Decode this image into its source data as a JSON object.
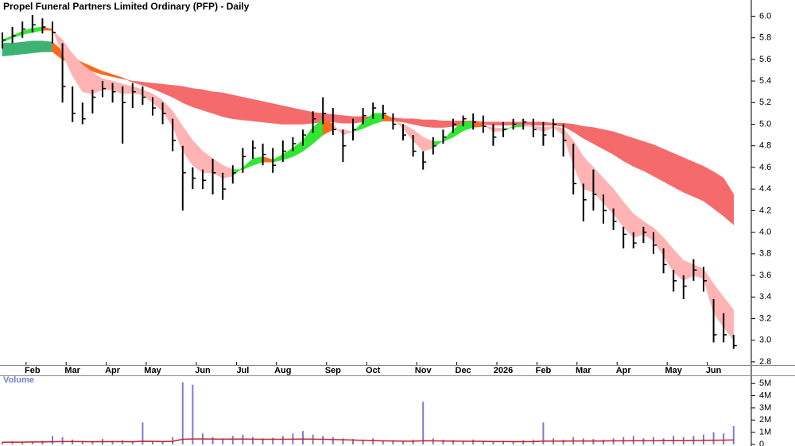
{
  "chart_data": {
    "type": "stock",
    "title": "Propel Funeral Partners Limited Ordinary (PFP) - Daily",
    "categories": [
      null,
      null,
      null,
      "Feb",
      null,
      null,
      null,
      "Mar",
      null,
      null,
      null,
      "Apr",
      null,
      null,
      null,
      "May",
      null,
      null,
      null,
      null,
      "Jun",
      null,
      null,
      null,
      "Jul",
      null,
      null,
      null,
      "Aug",
      null,
      null,
      null,
      null,
      "Sep",
      null,
      null,
      null,
      "Oct",
      null,
      null,
      null,
      null,
      "Nov",
      null,
      null,
      null,
      "Dec",
      null,
      null,
      null,
      "2026",
      null,
      null,
      null,
      "Feb",
      null,
      null,
      null,
      "Mar",
      null,
      null,
      null,
      "Apr",
      null,
      null,
      null,
      null,
      "May",
      null,
      null,
      null,
      "Jun",
      null,
      null
    ],
    "color": "#000000",
    "high": [
      5.85,
      5.9,
      5.95,
      6.01,
      5.98,
      5.95,
      5.75,
      5.35,
      5.2,
      5.32,
      5.4,
      5.38,
      5.35,
      5.38,
      5.35,
      5.25,
      5.2,
      5.05,
      4.8,
      4.6,
      4.58,
      4.68,
      4.55,
      4.62,
      4.78,
      4.85,
      4.82,
      4.78,
      4.85,
      4.88,
      4.95,
      5.12,
      5.25,
      5.15,
      4.95,
      5.05,
      5.15,
      5.2,
      5.18,
      5.1,
      5.0,
      4.9,
      4.75,
      4.88,
      4.95,
      5.05,
      5.08,
      5.1,
      5.08,
      5.0,
      5.02,
      5.05,
      5.05,
      5.05,
      5.02,
      5.05,
      5.0,
      4.82,
      4.45,
      4.58,
      4.35,
      4.22,
      4.05,
      4.0,
      4.05,
      4.0,
      3.85,
      3.65,
      3.6,
      3.75,
      3.68,
      3.38,
      3.25,
      3.05
    ],
    "low": [
      5.7,
      5.75,
      5.8,
      5.85,
      5.84,
      5.75,
      5.2,
      5.02,
      5.0,
      5.1,
      5.25,
      5.2,
      4.82,
      5.15,
      5.18,
      5.08,
      5.0,
      4.75,
      4.2,
      4.4,
      4.4,
      4.35,
      4.3,
      4.45,
      4.55,
      4.68,
      4.62,
      4.55,
      4.65,
      4.75,
      4.8,
      4.92,
      5.0,
      4.9,
      4.65,
      4.85,
      5.0,
      5.05,
      5.05,
      4.95,
      4.85,
      4.7,
      4.58,
      4.72,
      4.82,
      4.92,
      4.98,
      4.95,
      4.92,
      4.8,
      4.88,
      4.95,
      4.95,
      4.88,
      4.8,
      4.88,
      4.7,
      4.35,
      4.1,
      4.2,
      4.08,
      4.02,
      3.85,
      3.85,
      3.9,
      3.8,
      3.62,
      3.45,
      3.38,
      3.55,
      3.45,
      2.98,
      2.98,
      2.92
    ],
    "close": [
      5.78,
      5.82,
      5.88,
      5.92,
      5.9,
      5.85,
      5.35,
      5.1,
      5.05,
      5.25,
      5.33,
      5.3,
      5.2,
      5.3,
      5.25,
      5.15,
      5.1,
      4.85,
      4.55,
      4.5,
      4.48,
      4.55,
      4.4,
      4.55,
      4.7,
      4.78,
      4.72,
      4.62,
      4.75,
      4.82,
      4.9,
      5.05,
      5.1,
      4.95,
      4.8,
      4.95,
      5.08,
      5.15,
      5.1,
      5.0,
      4.9,
      4.75,
      4.65,
      4.8,
      4.88,
      5.0,
      5.05,
      5.02,
      4.98,
      4.88,
      4.95,
      5.0,
      5.02,
      4.95,
      4.9,
      5.0,
      4.85,
      4.45,
      4.3,
      4.35,
      4.2,
      4.1,
      3.98,
      3.9,
      4.0,
      3.88,
      3.7,
      3.55,
      3.5,
      3.65,
      3.55,
      3.05,
      3.05,
      2.95
    ],
    "bands": [
      {
        "fast": [
          5.75,
          5.75,
          5.76,
          5.77,
          5.77,
          5.76,
          5.68,
          5.62,
          5.57,
          5.53,
          5.49,
          5.46,
          5.43,
          5.39,
          5.36,
          5.33,
          5.29,
          5.25,
          5.2,
          5.16,
          5.13,
          5.1,
          5.07,
          5.05,
          5.04,
          5.03,
          5.02,
          5.01,
          5.0,
          5.0,
          5.0,
          5.01,
          5.02,
          5.02,
          5.01,
          5.01,
          5.02,
          5.03,
          5.03,
          5.03,
          5.02,
          5.0,
          4.98,
          4.97,
          4.97,
          4.98,
          4.99,
          5.0,
          5.0,
          4.99,
          4.99,
          4.99,
          5.0,
          4.99,
          4.99,
          4.99,
          4.98,
          4.93,
          4.87,
          4.82,
          4.77,
          4.72,
          4.66,
          4.61,
          4.57,
          4.52,
          4.47,
          4.42,
          4.37,
          4.33,
          4.29,
          4.22,
          4.15,
          4.07
        ],
        "slow": [
          5.63,
          5.64,
          5.65,
          5.66,
          5.67,
          5.67,
          5.6,
          5.56,
          5.52,
          5.49,
          5.46,
          5.44,
          5.42,
          5.4,
          5.39,
          5.38,
          5.37,
          5.36,
          5.35,
          5.33,
          5.32,
          5.3,
          5.29,
          5.27,
          5.25,
          5.23,
          5.21,
          5.19,
          5.17,
          5.15,
          5.13,
          5.11,
          5.1,
          5.09,
          5.08,
          5.07,
          5.07,
          5.07,
          5.06,
          5.06,
          5.05,
          5.05,
          5.04,
          5.04,
          5.03,
          5.03,
          5.03,
          5.03,
          5.02,
          5.02,
          5.02,
          5.02,
          5.02,
          5.02,
          5.02,
          5.01,
          5.01,
          5.0,
          4.98,
          4.97,
          4.95,
          4.93,
          4.9,
          4.87,
          4.84,
          4.81,
          4.77,
          4.73,
          4.69,
          4.65,
          4.61,
          4.56,
          4.5,
          4.35
        ],
        "up_color": "#3cb371",
        "mid_color": "#ff6a1a",
        "down_color": "#f56b6b"
      },
      {
        "fast": [
          5.78,
          5.82,
          5.86,
          5.89,
          5.9,
          5.88,
          5.65,
          5.45,
          5.3,
          5.28,
          5.32,
          5.32,
          5.28,
          5.29,
          5.27,
          5.2,
          5.12,
          4.98,
          4.75,
          4.62,
          4.55,
          4.55,
          4.5,
          4.52,
          4.6,
          4.68,
          4.7,
          4.67,
          4.72,
          4.78,
          4.85,
          4.97,
          5.05,
          5.0,
          4.9,
          4.93,
          5.02,
          5.1,
          5.1,
          5.05,
          4.96,
          4.85,
          4.75,
          4.78,
          4.85,
          4.95,
          5.02,
          5.02,
          5.0,
          4.93,
          4.94,
          4.98,
          5.0,
          4.97,
          4.93,
          4.97,
          4.9,
          4.62,
          4.4,
          4.37,
          4.27,
          4.17,
          4.05,
          3.95,
          3.98,
          3.92,
          3.78,
          3.63,
          3.55,
          3.6,
          3.57,
          3.25,
          3.12,
          3.0
        ],
        "slow": [
          5.76,
          5.8,
          5.83,
          5.85,
          5.87,
          5.87,
          5.78,
          5.65,
          5.55,
          5.48,
          5.42,
          5.4,
          5.37,
          5.35,
          5.32,
          5.28,
          5.22,
          5.12,
          4.98,
          4.85,
          4.75,
          4.68,
          4.62,
          4.58,
          4.58,
          4.62,
          4.65,
          4.65,
          4.67,
          4.7,
          4.75,
          4.82,
          4.9,
          4.95,
          4.95,
          4.93,
          4.96,
          5.0,
          5.03,
          5.03,
          5.0,
          4.95,
          4.88,
          4.84,
          4.84,
          4.88,
          4.94,
          4.97,
          4.98,
          4.97,
          4.96,
          4.97,
          4.98,
          4.98,
          4.97,
          4.98,
          4.96,
          4.85,
          4.7,
          4.6,
          4.5,
          4.4,
          4.28,
          4.17,
          4.1,
          4.04,
          3.95,
          3.84,
          3.74,
          3.7,
          3.66,
          3.52,
          3.4,
          3.28
        ],
        "up_color": "#33e633",
        "mid_color": "#ff6a1a",
        "down_color": "#ffb3b3"
      }
    ],
    "ylim": [
      2.77,
      6.15
    ],
    "yticks": [
      2.8,
      {
        "value": 3.0,
        "label": "3.0"
      },
      3.2,
      3.4,
      3.6,
      3.8,
      {
        "value": 4.0,
        "label": "4.0"
      },
      4.2,
      4.4,
      4.6,
      4.8,
      {
        "value": 5.0,
        "label": "5.0"
      },
      5.2,
      5.4,
      5.6,
      5.8,
      {
        "value": 6.0,
        "label": "6.0"
      }
    ],
    "volume": {
      "label": "Volume",
      "color": "#7b7bd6",
      "ma_color": "#cc2222",
      "values": [
        200000,
        250000,
        180000,
        220000,
        300000,
        700000,
        600000,
        400000,
        300000,
        250000,
        450000,
        300000,
        350000,
        250000,
        1800000,
        300000,
        250000,
        600000,
        5100000,
        4900000,
        900000,
        600000,
        500000,
        700000,
        800000,
        600000,
        500000,
        550000,
        700000,
        900000,
        1100000,
        800000,
        700000,
        600000,
        500000,
        450000,
        400000,
        500000,
        300000,
        350000,
        300000,
        400000,
        3500000,
        500000,
        400000,
        350000,
        300000,
        400000,
        300000,
        250000,
        300000,
        250000,
        350000,
        400000,
        1800000,
        500000,
        400000,
        600000,
        500000,
        450000,
        400000,
        500000,
        600000,
        700000,
        500000,
        600000,
        500000,
        700000,
        600000,
        700000,
        800000,
        1000000,
        900000,
        1500000
      ],
      "ma": [
        180000,
        190000,
        190000,
        200000,
        200000,
        220000,
        240000,
        240000,
        230000,
        220000,
        230000,
        230000,
        230000,
        220000,
        260000,
        250000,
        240000,
        250000,
        420000,
        450000,
        450000,
        440000,
        430000,
        440000,
        440000,
        430000,
        420000,
        420000,
        420000,
        430000,
        440000,
        430000,
        420000,
        400000,
        380000,
        360000,
        330000,
        310000,
        290000,
        280000,
        270000,
        260000,
        300000,
        290000,
        280000,
        270000,
        260000,
        260000,
        250000,
        240000,
        240000,
        230000,
        230000,
        240000,
        270000,
        270000,
        270000,
        280000,
        280000,
        280000,
        280000,
        290000,
        290000,
        300000,
        300000,
        300000,
        310000,
        310000,
        310000,
        320000,
        330000,
        340000,
        350000,
        370000
      ],
      "ylim": [
        0,
        5600000
      ],
      "yticks": [
        0,
        {
          "value": 1000000,
          "label": "1M"
        },
        {
          "value": 2000000,
          "label": "2M"
        },
        {
          "value": 3000000,
          "label": "3M"
        },
        {
          "value": 4000000,
          "label": "4M"
        },
        {
          "value": 5000000,
          "label": "5M"
        }
      ]
    }
  }
}
